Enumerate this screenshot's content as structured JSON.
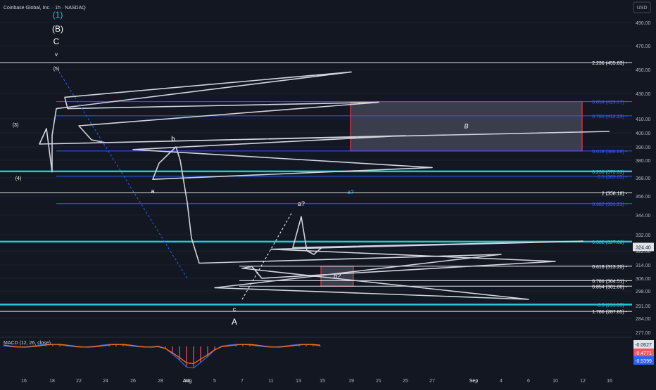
{
  "header": {
    "symbol_line": "Coinbase Global, Inc. · 1h · NASDAQ",
    "currency": "USD"
  },
  "colors": {
    "background": "#131722",
    "axis_text": "#b2b5be",
    "grid": "#1c2030",
    "candle": "#d1d4dc",
    "white_level": "#e8e8e8",
    "blue_level": "#2962ff",
    "cyan_level": "#26c6da",
    "zone_border": "#f23645",
    "zone_fill": "#4a4f5e",
    "macd_line": "#2962ff",
    "signal_line": "#ff6d00"
  },
  "chart_data": {
    "type": "candlestick",
    "title": "",
    "xlabel": "",
    "ylabel": "",
    "ylim": [
      270,
      500
    ],
    "x_ticks": [
      "16",
      "18",
      "22",
      "24",
      "26",
      "28",
      "30",
      "Aug",
      "5",
      "7",
      "11",
      "13",
      "15",
      "19",
      "21",
      "25",
      "27",
      "Sep",
      "4",
      "6",
      "10",
      "12",
      "16"
    ],
    "y_ticks": [
      277,
      284,
      291,
      298,
      306,
      314,
      322,
      332,
      344,
      356,
      368,
      380,
      390,
      400,
      410,
      430,
      450,
      470,
      490
    ],
    "last_price": "324.40",
    "price_path": [
      {
        "x": "16",
        "y": 401
      },
      {
        "x": "17",
        "y": 392
      },
      {
        "x": "17.5",
        "y": 403
      },
      {
        "x": "17.8",
        "y": 372
      },
      {
        "x": "18",
        "y": 398
      },
      {
        "x": "18.5",
        "y": 418
      },
      {
        "x": "19",
        "y": 448
      },
      {
        "x": "19.5",
        "y": 427
      },
      {
        "x": "20",
        "y": 418
      },
      {
        "x": "21",
        "y": 423
      },
      {
        "x": "22",
        "y": 405
      },
      {
        "x": "23",
        "y": 395
      },
      {
        "x": "24",
        "y": 393
      },
      {
        "x": "25",
        "y": 398
      },
      {
        "x": "26",
        "y": 388
      },
      {
        "x": "27",
        "y": 375
      },
      {
        "x": "28",
        "y": 367
      },
      {
        "x": "29",
        "y": 378
      },
      {
        "x": "30",
        "y": 390
      },
      {
        "x": "31",
        "y": 380
      },
      {
        "x": "Aug",
        "y": 352
      },
      {
        "x": "2",
        "y": 330
      },
      {
        "x": "3",
        "y": 315
      },
      {
        "x": "4",
        "y": 320
      },
      {
        "x": "5",
        "y": 300
      },
      {
        "x": "6",
        "y": 294
      },
      {
        "x": "7",
        "y": 312
      },
      {
        "x": "8",
        "y": 313
      },
      {
        "x": "9",
        "y": 306
      },
      {
        "x": "10",
        "y": 316
      },
      {
        "x": "11",
        "y": 323
      },
      {
        "x": "12",
        "y": 328
      },
      {
        "x": "13",
        "y": 324
      },
      {
        "x": "13.5",
        "y": 343
      },
      {
        "x": "14",
        "y": 322
      },
      {
        "x": "14.5",
        "y": 320
      },
      {
        "x": "15",
        "y": 324.4
      }
    ],
    "levels": [
      {
        "label": "2.236 (455.83)",
        "value": 455.83,
        "color": "white"
      },
      {
        "label": "0.854 (423.57)",
        "value": 423.57,
        "color": "blue"
      },
      {
        "label": "0.786 (412.29)",
        "value": 412.29,
        "color": "blue"
      },
      {
        "label": "0.618 (386.89)",
        "value": 386.89,
        "color": "blue"
      },
      {
        "label": "0.236 (372.39)",
        "value": 372.39,
        "color": "cyan"
      },
      {
        "label": "0.5 (369.05)",
        "value": 369.05,
        "color": "blue"
      },
      {
        "label": "2 (358.18)",
        "value": 358.18,
        "color": "white"
      },
      {
        "label": "0.382 (351.21)",
        "value": 351.21,
        "color": "blue"
      },
      {
        "label": "0.382 (327.68)",
        "value": 327.68,
        "color": "cyan"
      },
      {
        "label": "0.618 (313.20)",
        "value": 313.2,
        "color": "white"
      },
      {
        "label": "0.786 (304.51)",
        "value": 304.51,
        "color": "white"
      },
      {
        "label": "0.854 (301.00)",
        "value": 301.0,
        "color": "white"
      },
      {
        "label": "0.5 (291.55)",
        "value": 291.55,
        "color": "cyan"
      },
      {
        "label": "1.786 (287.85)",
        "value": 287.85,
        "color": "white"
      }
    ],
    "wave_labels": [
      "(1)",
      "(B)",
      "C",
      "v",
      "(5)",
      "(3)",
      "(4)",
      "b",
      "a",
      "a?",
      "a?",
      "c",
      "A"
    ],
    "zones": [
      {
        "label": "B",
        "from": 386.89,
        "to": 423.57
      },
      {
        "label": "b?",
        "from": 301.0,
        "to": 313.2
      }
    ],
    "macd": {
      "label": "MACD (12, 26, close)",
      "values": [
        "-0.0627",
        "-0.4771",
        "-0.5399"
      ],
      "tag_colors": [
        "#e0e3eb",
        "#f7525f",
        "#2962ff"
      ]
    }
  }
}
